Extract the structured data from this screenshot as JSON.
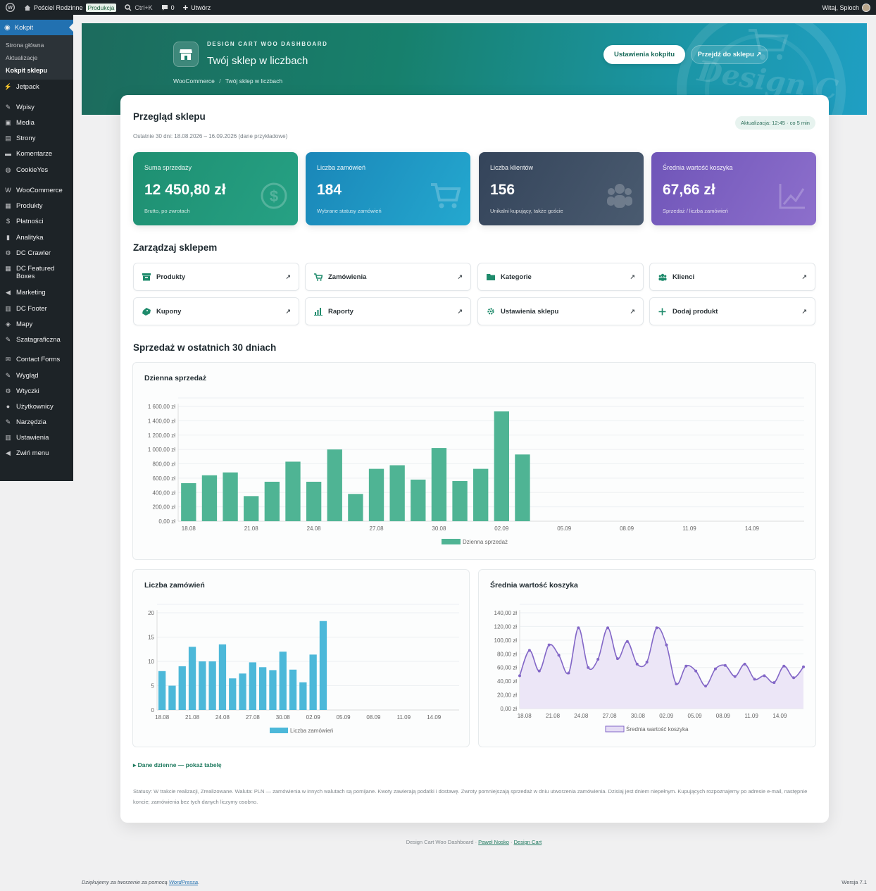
{
  "admin_bar": {
    "site_name": "Pościel Rodzinne",
    "env_badge": "Produkcja",
    "search_shortcut": "Ctrl+K",
    "comments_count": "0",
    "new_label": "Utwórz",
    "greeting": "Witaj, Spioch"
  },
  "sidebar": {
    "current": "Kokpit",
    "submenu": [
      "Strona główna",
      "Aktualizacje",
      "Kokpit sklepu"
    ],
    "items": [
      {
        "label": "Jetpack",
        "icon": "jetpack-icon"
      },
      {
        "label": "Wpisy",
        "icon": "pin-icon"
      },
      {
        "label": "Media",
        "icon": "media-icon"
      },
      {
        "label": "Strony",
        "icon": "pages-icon"
      },
      {
        "label": "Komentarze",
        "icon": "comment-icon"
      },
      {
        "label": "CookieYes",
        "icon": "cookie-icon"
      },
      {
        "label": "WooCommerce",
        "icon": "woo-icon"
      },
      {
        "label": "Produkty",
        "icon": "box-icon"
      },
      {
        "label": "Płatności",
        "icon": "payments-icon"
      },
      {
        "label": "Analityka",
        "icon": "bar-chart-icon"
      },
      {
        "label": "DC Crawler",
        "icon": "plug-icon"
      },
      {
        "label": "DC Featured Boxes",
        "icon": "grid-icon"
      },
      {
        "label": "Marketing",
        "icon": "megaphone-icon"
      },
      {
        "label": "DC Footer",
        "icon": "table-icon"
      },
      {
        "label": "Mapy",
        "icon": "map-icon"
      },
      {
        "label": "Szatagraficzna",
        "icon": "brush-icon"
      },
      {
        "label": "Contact Forms",
        "icon": "mail-icon"
      },
      {
        "label": "Wygląd",
        "icon": "brush-icon"
      },
      {
        "label": "Wtyczki",
        "icon": "plug-icon"
      },
      {
        "label": "Użytkownicy",
        "icon": "user-icon"
      },
      {
        "label": "Narzędzia",
        "icon": "wrench-icon"
      },
      {
        "label": "Ustawienia",
        "icon": "settings-icon"
      },
      {
        "label": "Zwiń menu",
        "icon": "collapse-icon"
      }
    ]
  },
  "hero": {
    "kicker": "DESIGN CART WOO DASHBOARD",
    "title": "Twój sklep w liczbach",
    "breadcrumb": [
      "WooCommerce",
      "/",
      "Twój sklep w liczbach"
    ],
    "btn_settings": "Ustawienia kokpitu",
    "btn_shop": "Przejdź do sklepu ↗",
    "watermark": "Design C"
  },
  "overview": {
    "title": "Przegląd sklepu",
    "period": "Ostatnie 30 dni: 18.08.2026 – 16.09.2026 (dane przykładowe)",
    "updated": "Aktualizacja: 12:45 · co 5 min"
  },
  "kpis": [
    {
      "label": "Suma sprzedaży",
      "value": "12 450,80 zł",
      "sub": "Brutto, po zwrotach",
      "icon": "dollar-icon",
      "color": "#1e8f71"
    },
    {
      "label": "Liczba zamówień",
      "value": "184",
      "sub": "Wybrane statusy zamówień",
      "icon": "cart-icon",
      "color": "#1a96bf"
    },
    {
      "label": "Liczba klientów",
      "value": "156",
      "sub": "Unikalni kupujący, także goście",
      "icon": "users-icon",
      "color": "#3a4a5e"
    },
    {
      "label": "Średnia wartość koszyka",
      "value": "67,66 zł",
      "sub": "Sprzedaż / liczba zamówień",
      "icon": "trend-icon",
      "color": "#7c5fc0"
    }
  ],
  "manage": {
    "title": "Zarządzaj sklepem",
    "actions": [
      {
        "label": "Produkty",
        "icon": "box-icon"
      },
      {
        "label": "Zamówienia",
        "icon": "cart-icon"
      },
      {
        "label": "Kategorie",
        "icon": "folder-icon"
      },
      {
        "label": "Klienci",
        "icon": "users-icon"
      },
      {
        "label": "Kupony",
        "icon": "coupon-icon"
      },
      {
        "label": "Raporty",
        "icon": "bar-chart-icon"
      },
      {
        "label": "Ustawienia sklepu",
        "icon": "gear-icon"
      },
      {
        "label": "Dodaj produkt",
        "icon": "plus-icon"
      }
    ],
    "arrow": "↗"
  },
  "sales_section_title": "Sprzedaż w ostatnich 30 dniach",
  "chart_data": [
    {
      "type": "bar",
      "title": "Dzienna sprzedaż",
      "legend": "Dzienna sprzedaż",
      "color": "#4fb494",
      "x_ticks": [
        "18.08",
        "21.08",
        "24.08",
        "27.08",
        "30.08",
        "02.09",
        "05.09",
        "08.09",
        "11.09",
        "14.09"
      ],
      "y_ticks": [
        "0,00 zł",
        "200,00 zł",
        "400,00 zł",
        "600,00 zł",
        "800,00 zł",
        "1 000,00 zł",
        "1 200,00 zł",
        "1 400,00 zł",
        "1 600,00 zł"
      ],
      "ylim": [
        0,
        1600
      ],
      "values": [
        530,
        640,
        680,
        350,
        550,
        830,
        550,
        1000,
        380,
        730,
        780,
        580,
        1020,
        560,
        730,
        1530,
        930,
        0,
        0,
        0,
        0,
        0,
        0,
        0,
        0,
        0,
        0,
        0,
        0,
        0
      ]
    },
    {
      "type": "bar",
      "title": "Liczba zamówień",
      "legend": "Liczba zamówień",
      "color": "#4cb8d9",
      "x_ticks": [
        "18.08",
        "21.08",
        "24.08",
        "27.08",
        "30.08",
        "02.09",
        "05.09",
        "08.09",
        "11.09",
        "14.09"
      ],
      "y_ticks": [
        "0",
        "5",
        "10",
        "15",
        "20"
      ],
      "ylim": [
        0,
        20
      ],
      "values": [
        8,
        5,
        9,
        13,
        10,
        10,
        13.5,
        6.5,
        7.5,
        9.8,
        8.8,
        8.2,
        12,
        8.3,
        5.7,
        11.4,
        18.3,
        0,
        0,
        0,
        0,
        0,
        0,
        0,
        0,
        0,
        0,
        0,
        0,
        0
      ]
    },
    {
      "type": "area",
      "title": "Średnia wartość koszyka",
      "legend": "Średnia wartość koszyka",
      "color": "#8367c7",
      "x_ticks": [
        "18.08",
        "21.08",
        "24.08",
        "27.08",
        "30.08",
        "02.09",
        "05.09",
        "08.09",
        "11.09",
        "14.09"
      ],
      "y_ticks": [
        "0,00 zł",
        "20,00 zł",
        "40,00 zł",
        "60,00 zł",
        "80,00 zł",
        "100,00 zł",
        "120,00 zł",
        "140,00 zł"
      ],
      "ylim": [
        0,
        140
      ],
      "values": [
        48,
        85,
        55,
        93,
        78,
        52,
        118,
        60,
        72,
        118,
        73,
        98,
        65,
        68,
        118,
        93,
        36,
        62,
        55,
        33,
        58,
        63,
        47,
        65,
        43,
        48,
        38,
        62,
        45,
        61
      ]
    }
  ],
  "table_toggle": "▸ Dane dzienne — pokaż tabelę",
  "note": "Statusy: W trakcie realizacji, Zrealizowane. Waluta: PLN — zamówienia w innych walutach są pomijane. Kwoty zawierają podatki i dostawę. Zwroty pomniejszają sprzedaż w dniu utworzenia zamówienia. Dzisiaj jest dniem niepełnym. Kupujących rozpoznajemy po adresie e-mail, następnie koncie; zamówienia bez tych danych liczymy osobno.",
  "footer": {
    "prefix": "Design Cart Woo Dashboard · ",
    "author": "Paweł Nosko",
    "sep": " · ",
    "brand": "Design Cart",
    "thanks_prefix": "Dziękujemy za tworzenie za pomocą ",
    "wp": "WordPressa",
    "thanks_suffix": ".",
    "version": "Wersja 7.1"
  }
}
